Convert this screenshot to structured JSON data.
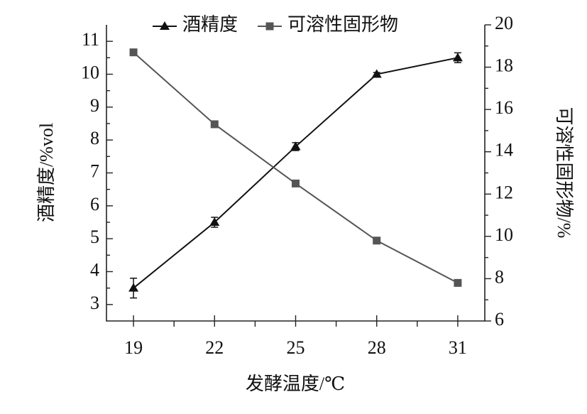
{
  "chart_data": {
    "type": "line",
    "x_label": "发酵温度/℃",
    "y_label": "酒精度/%vol",
    "y2_label": "可溶性固形物/%",
    "x": [
      19,
      22,
      25,
      28,
      31
    ],
    "xlim": [
      18,
      32
    ],
    "xticks": [
      19,
      22,
      25,
      28,
      31
    ],
    "ylim": [
      2.5,
      11.5
    ],
    "yticks": [
      3,
      4,
      5,
      6,
      7,
      8,
      9,
      10,
      11
    ],
    "y2lim": [
      6,
      20
    ],
    "y2ticks": [
      6,
      8,
      10,
      12,
      14,
      16,
      18,
      20
    ],
    "legend": "top",
    "series": [
      {
        "name": "酒精度",
        "color": "#111111",
        "marker": "triangle",
        "values": [
          3.5,
          5.5,
          7.8,
          10.0,
          10.5
        ],
        "errors": [
          0.3,
          0.15,
          0.12,
          0.05,
          0.15
        ]
      },
      {
        "name": "可溶性固形物",
        "color": "#555555",
        "marker": "square",
        "axis": "y2",
        "values": [
          18.7,
          15.3,
          12.5,
          9.8,
          7.8
        ],
        "errors": [
          0.1,
          0.05,
          0.1,
          0.05,
          0.05
        ]
      }
    ]
  }
}
